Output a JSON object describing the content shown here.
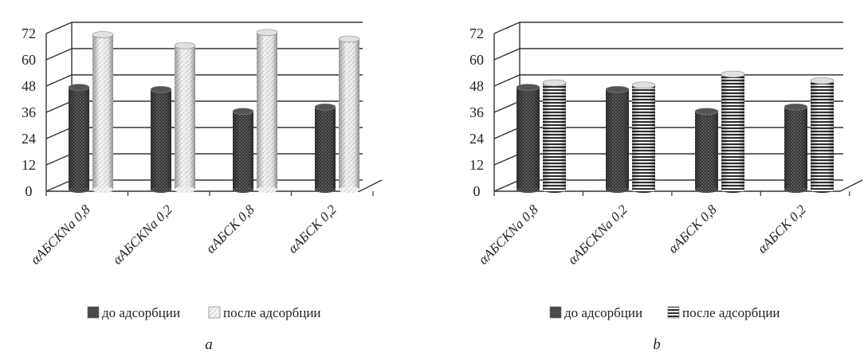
{
  "chart_data": [
    {
      "panel_label": "a",
      "type": "bar",
      "categories": [
        "αАБСКNa 0,8",
        "αАБСКNa  0,2",
        "αАБСК 0,8",
        "αАБСК 0,2"
      ],
      "series": [
        {
          "name": "до адсорбции",
          "values": [
            46,
            45,
            35,
            37
          ],
          "pattern": "dark"
        },
        {
          "name": "после адсорбции",
          "values": [
            70,
            65,
            71,
            68
          ],
          "pattern": "dotted"
        }
      ],
      "yticks": [
        "0",
        "12",
        "24",
        "36",
        "48",
        "60",
        "72"
      ],
      "ylim": [
        0,
        72
      ],
      "grid": true,
      "legend_position": "bottom"
    },
    {
      "panel_label": "b",
      "type": "bar",
      "categories": [
        "αАБСКNa 0,8",
        "αАБСКNa  0,2",
        "αАБСК 0,8",
        "αАБСК 0,2"
      ],
      "series": [
        {
          "name": "до адсорбции",
          "values": [
            46,
            45,
            35,
            37
          ],
          "pattern": "dark"
        },
        {
          "name": "после адсорбции",
          "values": [
            48,
            47,
            52,
            49
          ],
          "pattern": "striped"
        }
      ],
      "yticks": [
        "0",
        "12",
        "24",
        "36",
        "48",
        "60",
        "72"
      ],
      "ylim": [
        0,
        72
      ],
      "grid": true,
      "legend_position": "bottom"
    }
  ],
  "colors": {
    "bar_dark": "#444444",
    "bar_light": "#f2f2f2",
    "grid": "#333333"
  }
}
